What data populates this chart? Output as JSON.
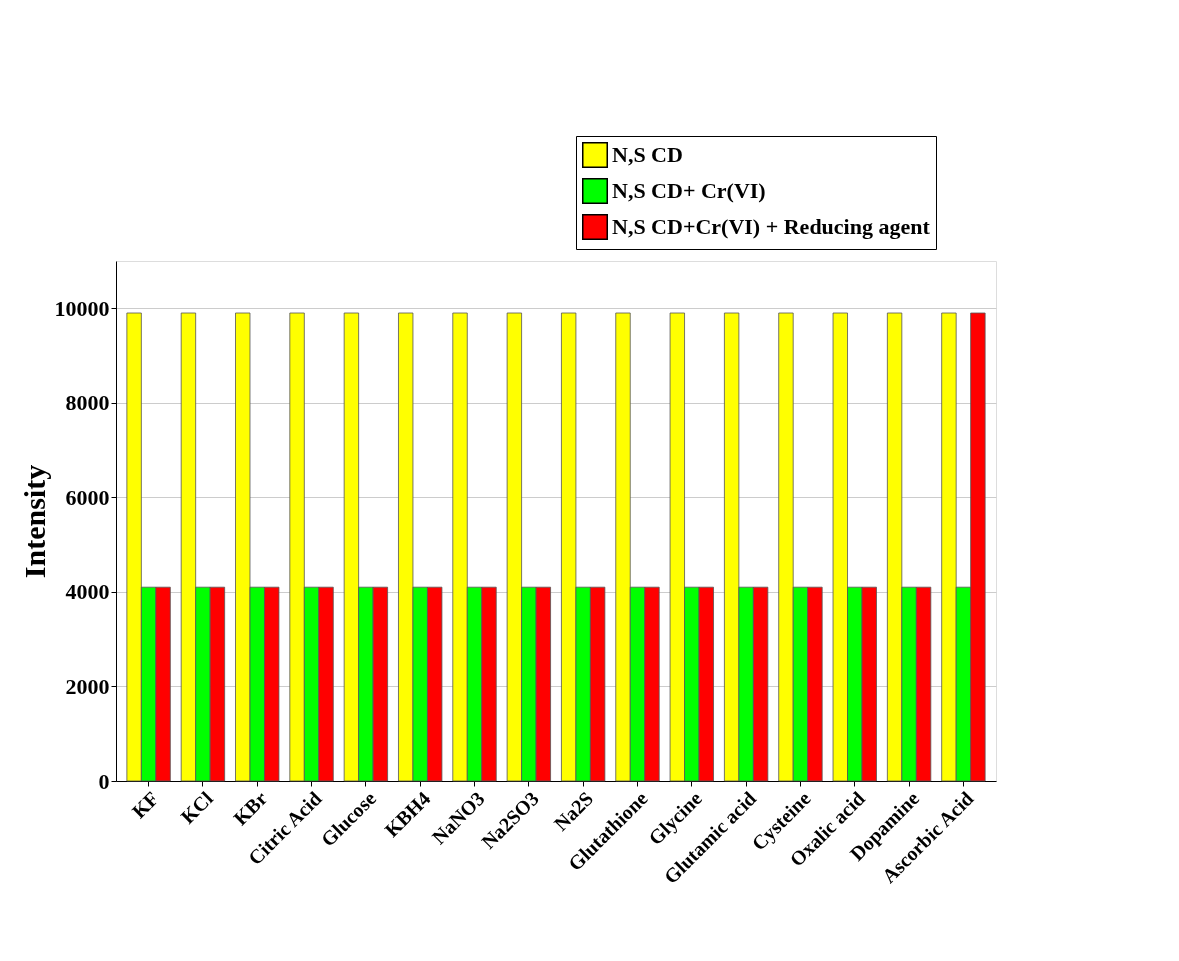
{
  "chart_data": {
    "type": "bar",
    "ylabel": "Intensity",
    "categories": [
      "KF",
      "KCl",
      "KBr",
      "Citric Acid",
      "Glucose",
      "KBH4",
      "NaNO3",
      "Na2SO3",
      "Na2S",
      "Glutathione",
      "Glycine",
      "Glutamic acid",
      "Cysteine",
      "Oxalic acid",
      "Dopamine",
      "Ascorbic Acid"
    ],
    "series": [
      {
        "name": "N,S CD",
        "color": "#ffff00",
        "values": [
          9900,
          9900,
          9900,
          9900,
          9900,
          9900,
          9900,
          9900,
          9900,
          9900,
          9900,
          9900,
          9900,
          9900,
          9900,
          9900
        ]
      },
      {
        "name": "N,S CD+ Cr(VI)",
        "color": "#00ff00",
        "values": [
          4100,
          4100,
          4100,
          4100,
          4100,
          4100,
          4100,
          4100,
          4100,
          4100,
          4100,
          4100,
          4100,
          4100,
          4100,
          4100
        ]
      },
      {
        "name": "N,S CD+Cr(VI) + Reducing agent",
        "color": "#ff0000",
        "values": [
          4100,
          4100,
          4100,
          4100,
          4100,
          4100,
          4100,
          4100,
          4100,
          4100,
          4100,
          4100,
          4100,
          4100,
          4100,
          9900
        ]
      }
    ],
    "ylim": [
      0,
      11000
    ],
    "yticks": [
      0,
      2000,
      4000,
      6000,
      8000,
      10000
    ],
    "grid": "y",
    "legend": "top right"
  }
}
